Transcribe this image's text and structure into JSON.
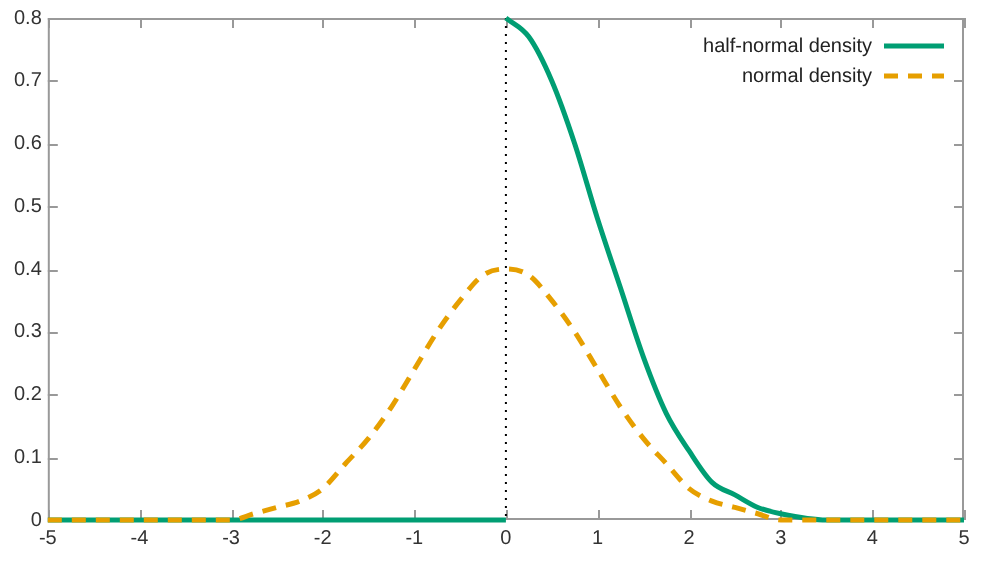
{
  "chart_data": {
    "type": "line",
    "xlim": [
      -5,
      5
    ],
    "xticks": [
      -5,
      -4,
      -3,
      -2,
      -1,
      0,
      1,
      2,
      3,
      4,
      5
    ],
    "ylim": [
      0,
      0.8
    ],
    "yticks": [
      0,
      0.1,
      0.2,
      0.3,
      0.4,
      0.5,
      0.6,
      0.7,
      0.8
    ],
    "grid": false,
    "legend": "top right",
    "marker": "none",
    "series": [
      {
        "name": "half-normal density",
        "color": "#009e73",
        "line_style": "solid",
        "x": [
          -5,
          -4,
          -3,
          -2,
          -1,
          0,
          null,
          0,
          0.25,
          0.5,
          0.75,
          1,
          1.25,
          1.5,
          1.75,
          2,
          2.25,
          2.5,
          2.75,
          3,
          3.5,
          4,
          5
        ],
        "values": [
          0,
          0,
          0,
          0,
          0,
          0,
          null,
          0.8,
          0.77,
          0.7,
          0.6,
          0.48,
          0.37,
          0.26,
          0.17,
          0.11,
          0.06,
          0.04,
          0.02,
          0.01,
          0,
          0,
          0
        ]
      },
      {
        "name": "normal density",
        "color": "#e69f00",
        "line_style": "dashed",
        "x": [
          -5,
          -4,
          -3.5,
          -3,
          -2.75,
          -2.5,
          -2.25,
          -2,
          -1.75,
          -1.5,
          -1.25,
          -1,
          -0.75,
          -0.5,
          -0.25,
          0,
          0.25,
          0.5,
          0.75,
          1,
          1.25,
          1.5,
          1.75,
          2,
          2.25,
          2.5,
          2.75,
          3,
          3.5,
          4,
          5
        ],
        "values": [
          0,
          0,
          0,
          0,
          0.01,
          0.02,
          0.03,
          0.05,
          0.09,
          0.13,
          0.18,
          0.24,
          0.3,
          0.35,
          0.39,
          0.4,
          0.39,
          0.35,
          0.3,
          0.24,
          0.18,
          0.13,
          0.09,
          0.05,
          0.03,
          0.02,
          0.01,
          0,
          0,
          0,
          0
        ]
      }
    ],
    "ref_lines": [
      {
        "axis": "x",
        "value": 0,
        "color": "#000000",
        "line_style": "dotted"
      }
    ]
  }
}
